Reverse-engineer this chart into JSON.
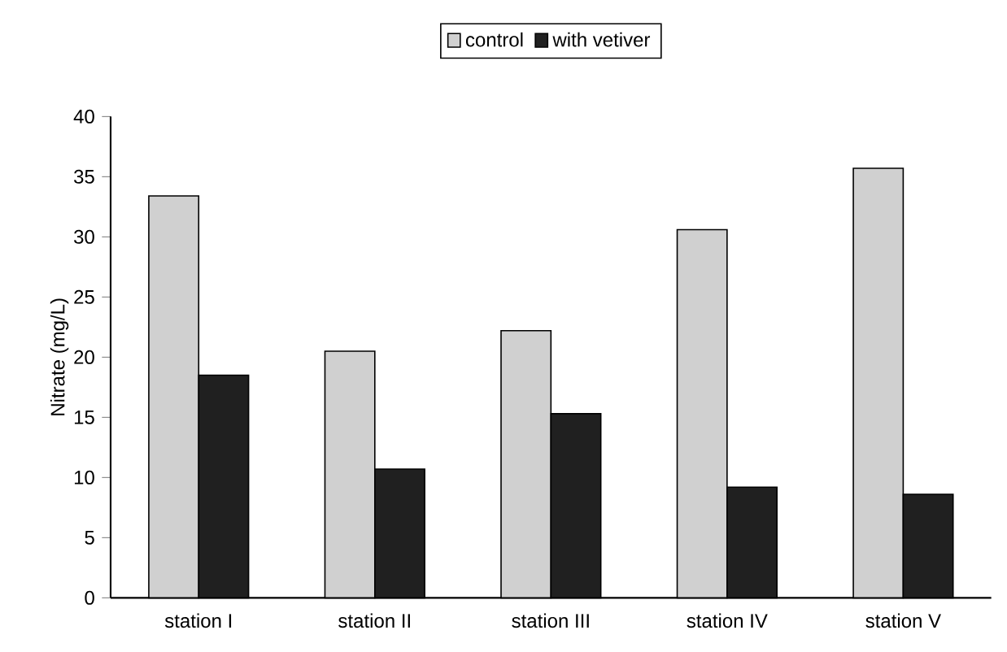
{
  "chart_data": {
    "type": "bar",
    "ylabel": "Nitrate (mg/L)",
    "categories": [
      "station I",
      "station II",
      "station III",
      "station IV",
      "station V"
    ],
    "series": [
      {
        "name": "control",
        "color": "#d0d0d0",
        "values": [
          33.4,
          20.5,
          22.2,
          30.6,
          35.7
        ]
      },
      {
        "name": "with vetiver",
        "color": "#202020",
        "values": [
          18.5,
          10.7,
          15.3,
          9.2,
          8.6
        ]
      }
    ],
    "ylim": [
      0,
      40
    ],
    "yticks": [
      0,
      5,
      10,
      15,
      20,
      25,
      30,
      35,
      40
    ],
    "legend": "top"
  }
}
